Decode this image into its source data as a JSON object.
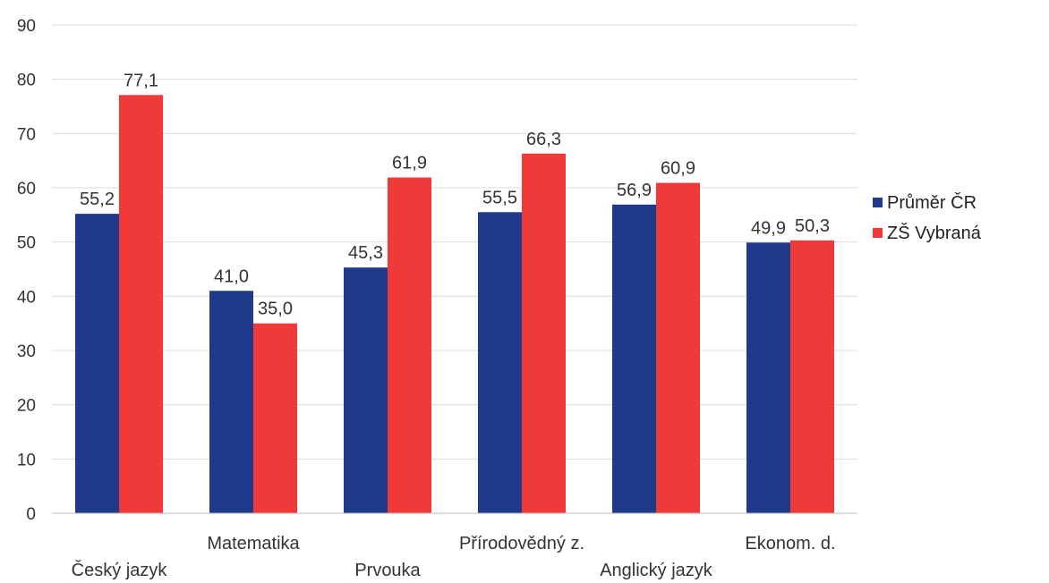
{
  "chart_data": {
    "type": "bar",
    "categories": [
      "Český jazyk",
      "Matematika",
      "Prvouka",
      "Přírodovědný z.",
      "Anglický jazyk",
      "Ekonom. d."
    ],
    "series": [
      {
        "name": "Průměr ČR",
        "color": "#1f3a8a",
        "values": [
          55.2,
          41.0,
          45.3,
          55.5,
          56.9,
          49.9
        ],
        "labels": [
          "55,2",
          "41,0",
          "45,3",
          "55,5",
          "56,9",
          "49,9"
        ]
      },
      {
        "name": "ZŠ Vybraná",
        "color": "#f03a3a",
        "values": [
          77.1,
          35.0,
          61.9,
          66.3,
          60.9,
          50.3
        ],
        "labels": [
          "77,1",
          "35,0",
          "61,9",
          "66,3",
          "60,9",
          "50,3"
        ]
      }
    ],
    "ylim": [
      0,
      90
    ],
    "yticks": [
      0,
      10,
      20,
      30,
      40,
      50,
      60,
      70,
      80,
      90
    ],
    "grid": true,
    "legend": "right"
  }
}
